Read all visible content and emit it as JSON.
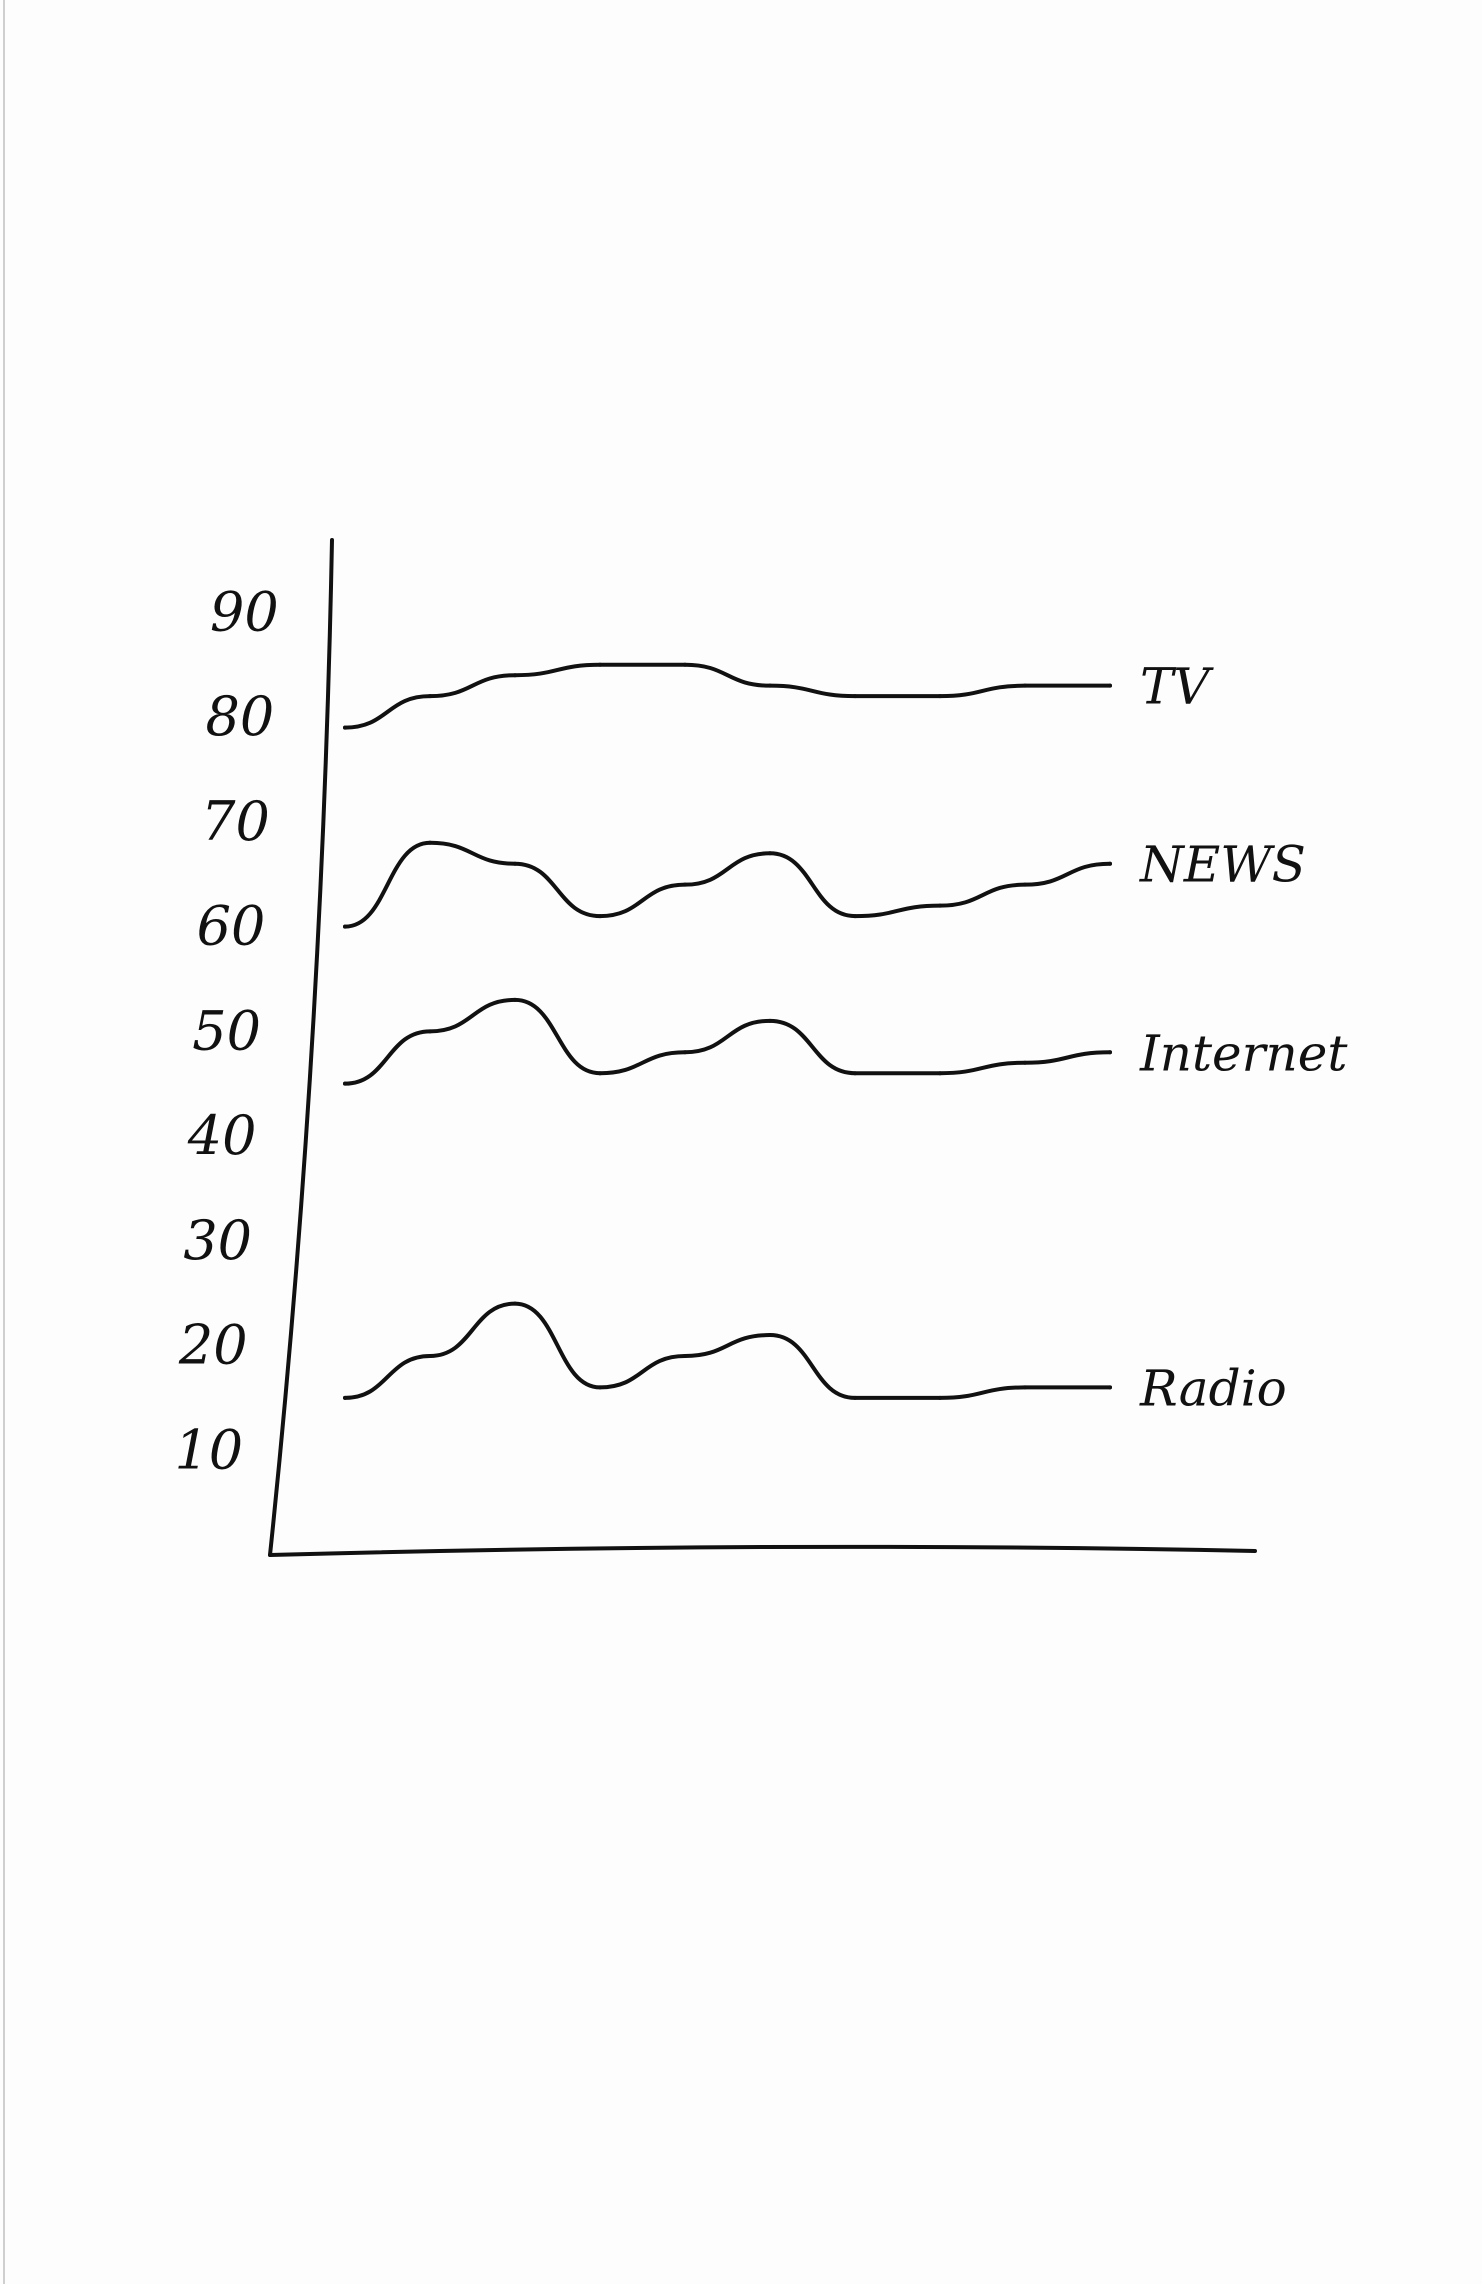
{
  "chart_data": {
    "type": "line",
    "title": "",
    "xlabel": "",
    "ylabel": "",
    "ylim": [
      0,
      95
    ],
    "y_ticks": [
      "10",
      "20",
      "30",
      "40",
      "50",
      "60",
      "70",
      "80",
      "90"
    ],
    "grid": false,
    "legend": "labels at line ends (right)",
    "x": [
      0,
      1,
      2,
      3,
      4,
      5,
      6,
      7,
      8,
      9
    ],
    "series": [
      {
        "name": "TV",
        "values": [
          79,
          82,
          84,
          85,
          85,
          83,
          82,
          82,
          83,
          83
        ]
      },
      {
        "name": "NEWS",
        "values": [
          60,
          68,
          66,
          61,
          64,
          67,
          61,
          62,
          64,
          66
        ]
      },
      {
        "name": "Internet",
        "values": [
          45,
          50,
          53,
          46,
          48,
          51,
          46,
          46,
          47,
          48
        ]
      },
      {
        "name": "Radio",
        "values": [
          15,
          19,
          24,
          16,
          19,
          21,
          15,
          15,
          16,
          16
        ]
      }
    ]
  }
}
